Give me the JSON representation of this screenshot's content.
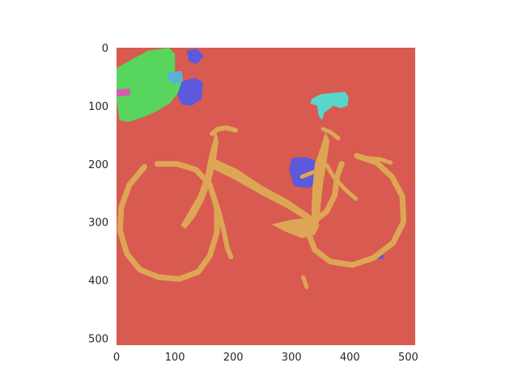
{
  "chart_data": {
    "type": "heatmap",
    "title": "",
    "xlabel": "",
    "ylabel": "",
    "xlim": [
      0,
      512
    ],
    "ylim": [
      512,
      0
    ],
    "grid": false,
    "legend": "none",
    "x_ticks": [
      0,
      100,
      200,
      300,
      400,
      500
    ],
    "y_ticks": [
      0,
      100,
      200,
      300,
      400,
      500
    ],
    "x_tick_labels": [
      "0",
      "100",
      "200",
      "300",
      "400",
      "500"
    ],
    "y_tick_labels": [
      "0",
      "100",
      "200",
      "300",
      "400",
      "500"
    ],
    "colors": {
      "background": "#d95a50",
      "bicycle": "#dda655",
      "foliage": "#58d55c",
      "blue_objects": "#5c59dd",
      "cyan_objects": "#59d6cc",
      "magenta_objects": "#d65ab5",
      "teal_objects": "#5ab1d6"
    },
    "segments": [
      {
        "class": "foliage",
        "color": "foliage",
        "poly": [
          [
            0,
            35
          ],
          [
            30,
            18
          ],
          [
            55,
            5
          ],
          [
            90,
            0
          ],
          [
            100,
            10
          ],
          [
            100,
            40
          ],
          [
            112,
            55
          ],
          [
            108,
            75
          ],
          [
            92,
            95
          ],
          [
            68,
            110
          ],
          [
            45,
            120
          ],
          [
            20,
            128
          ],
          [
            5,
            125
          ],
          [
            0,
            90
          ]
        ]
      },
      {
        "class": "cyan",
        "color": "cyan_objects",
        "poly": [
          [
            335,
            88
          ],
          [
            350,
            80
          ],
          [
            368,
            78
          ],
          [
            392,
            76
          ],
          [
            398,
            86
          ],
          [
            396,
            100
          ],
          [
            384,
            104
          ],
          [
            372,
            100
          ],
          [
            356,
            112
          ],
          [
            352,
            125
          ],
          [
            346,
            116
          ],
          [
            344,
            100
          ],
          [
            332,
            96
          ]
        ]
      },
      {
        "class": "teal",
        "color": "teal_objects",
        "poly": [
          [
            88,
            42
          ],
          [
            112,
            40
          ],
          [
            114,
            58
          ],
          [
            96,
            62
          ],
          [
            88,
            52
          ]
        ]
      },
      {
        "class": "magenta",
        "color": "magenta_objects",
        "poly": [
          [
            0,
            72
          ],
          [
            22,
            70
          ],
          [
            24,
            82
          ],
          [
            0,
            84
          ]
        ]
      },
      {
        "class": "blue",
        "color": "blue_objects",
        "poly": [
          [
            112,
            58
          ],
          [
            134,
            52
          ],
          [
            148,
            60
          ],
          [
            146,
            88
          ],
          [
            128,
            100
          ],
          [
            112,
            98
          ],
          [
            104,
            82
          ]
        ]
      },
      {
        "class": "blue",
        "color": "blue_objects",
        "poly": [
          [
            120,
            5
          ],
          [
            138,
            2
          ],
          [
            150,
            14
          ],
          [
            138,
            28
          ],
          [
            124,
            24
          ]
        ]
      },
      {
        "class": "blue",
        "color": "blue_objects",
        "poly": [
          [
            300,
            190
          ],
          [
            324,
            188
          ],
          [
            348,
            198
          ],
          [
            352,
            230
          ],
          [
            328,
            242
          ],
          [
            304,
            238
          ],
          [
            296,
            212
          ]
        ]
      },
      {
        "class": "blue",
        "color": "blue_objects",
        "poly": [
          [
            448,
            355
          ],
          [
            456,
            352
          ],
          [
            458,
            362
          ],
          [
            450,
            365
          ]
        ]
      },
      {
        "class": "bicycle",
        "color": "bicycle",
        "poly": [
          [
            160,
            180
          ],
          [
            166,
            160
          ],
          [
            170,
            142
          ],
          [
            175,
            162
          ],
          [
            170,
            196
          ],
          [
            162,
            230
          ],
          [
            150,
            262
          ],
          [
            134,
            292
          ],
          [
            118,
            312
          ],
          [
            110,
            306
          ],
          [
            124,
            282
          ],
          [
            140,
            254
          ],
          [
            152,
            220
          ]
        ]
      },
      {
        "class": "bicycle",
        "color": "bicycle",
        "poly": [
          [
            340,
            200
          ],
          [
            350,
            172
          ],
          [
            358,
            145
          ],
          [
            365,
            160
          ],
          [
            360,
            196
          ],
          [
            354,
            234
          ],
          [
            350,
            272
          ],
          [
            346,
            306
          ],
          [
            338,
            316
          ],
          [
            334,
            282
          ],
          [
            336,
            240
          ]
        ]
      },
      {
        "class": "bicycle",
        "color": "bicycle",
        "poly": [
          [
            166,
            190
          ],
          [
            208,
            210
          ],
          [
            250,
            238
          ],
          [
            294,
            262
          ],
          [
            338,
            292
          ],
          [
            334,
            302
          ],
          [
            292,
            276
          ],
          [
            246,
            252
          ],
          [
            204,
            228
          ],
          [
            160,
            206
          ]
        ]
      },
      {
        "class": "bicycle",
        "color": "bicycle",
        "poly": [
          [
            266,
            304
          ],
          [
            300,
            296
          ],
          [
            336,
            292
          ],
          [
            348,
            306
          ],
          [
            340,
            322
          ],
          [
            318,
            328
          ],
          [
            288,
            316
          ]
        ]
      }
    ],
    "strokes": [
      {
        "class": "bicycle",
        "color": "bicycle",
        "width": 7,
        "d": [
          [
            48,
            205
          ],
          [
            22,
            236
          ],
          [
            8,
            275
          ],
          [
            6,
            315
          ],
          [
            18,
            355
          ],
          [
            40,
            382
          ],
          [
            72,
            395
          ],
          [
            108,
            398
          ],
          [
            140,
            386
          ],
          [
            160,
            358
          ],
          [
            172,
            318
          ],
          [
            172,
            276
          ],
          [
            160,
            236
          ],
          [
            136,
            210
          ],
          [
            104,
            200
          ],
          [
            70,
            200
          ]
        ]
      },
      {
        "class": "bicycle",
        "color": "bicycle",
        "width": 7,
        "d": [
          [
            412,
            186
          ],
          [
            446,
            198
          ],
          [
            472,
            222
          ],
          [
            490,
            256
          ],
          [
            492,
            300
          ],
          [
            474,
            336
          ],
          [
            440,
            362
          ],
          [
            404,
            374
          ],
          [
            366,
            368
          ],
          [
            340,
            348
          ],
          [
            330,
            322
          ],
          [
            342,
            296
          ],
          [
            360,
            282
          ],
          [
            374,
            254
          ],
          [
            378,
            222
          ],
          [
            386,
            200
          ]
        ]
      },
      {
        "class": "bicycle",
        "color": "bicycle",
        "width": 6,
        "d": [
          [
            165,
            250
          ],
          [
            176,
            284
          ],
          [
            184,
            316
          ],
          [
            190,
            345
          ],
          [
            196,
            360
          ]
        ]
      },
      {
        "class": "bicycle",
        "color": "bicycle",
        "width": 5,
        "d": [
          [
            360,
            202
          ],
          [
            372,
            222
          ],
          [
            392,
            244
          ],
          [
            410,
            260
          ]
        ]
      },
      {
        "class": "bicycle",
        "color": "bicycle",
        "width": 6,
        "d": [
          [
            164,
            148
          ],
          [
            174,
            140
          ],
          [
            188,
            138
          ],
          [
            204,
            142
          ]
        ]
      },
      {
        "class": "bicycle",
        "color": "bicycle",
        "width": 5,
        "d": [
          [
            354,
            140
          ],
          [
            368,
            146
          ],
          [
            380,
            156
          ]
        ]
      },
      {
        "class": "bicycle",
        "color": "bicycle",
        "width": 5,
        "d": [
          [
            430,
            190
          ],
          [
            452,
            192
          ],
          [
            470,
            198
          ]
        ]
      },
      {
        "class": "bicycle",
        "color": "bicycle",
        "width": 5,
        "d": [
          [
            320,
            395
          ],
          [
            326,
            412
          ]
        ]
      },
      {
        "class": "bicycle",
        "color": "bicycle",
        "width": 5,
        "d": [
          [
            318,
            222
          ],
          [
            338,
            214
          ]
        ]
      }
    ]
  }
}
